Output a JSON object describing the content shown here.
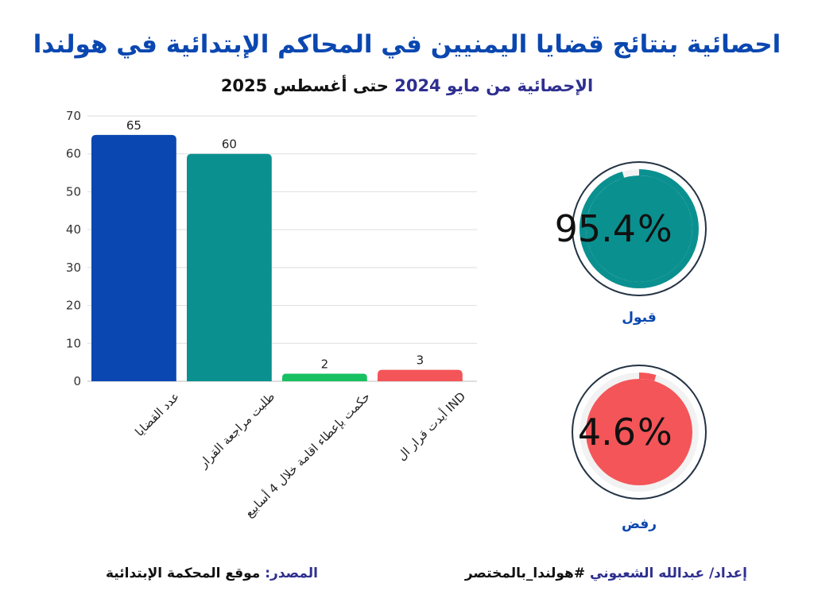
{
  "title": "احصائية بنتائج قضايا اليمنيين في المحاكم الإبتدائية في هولندا",
  "subtitle": {
    "highlight": "الإحصائية من مايو 2024",
    "rest": "حتى أغسطس 2025"
  },
  "chart_data": {
    "type": "bar",
    "categories": [
      "عدد القضايا",
      "طلبت مراجعة القرار",
      "حكمت بإعطاء اقامة خلال 4 أسابيع",
      "أيدت قرار ال IND"
    ],
    "values": [
      65,
      60,
      2,
      3
    ],
    "colors": [
      "#0a47b0",
      "#0b9090",
      "#17c060",
      "#f45558"
    ],
    "yticks": [
      0,
      10,
      20,
      30,
      40,
      50,
      60,
      70
    ],
    "ylim": [
      0,
      70
    ],
    "grid": true,
    "title": "",
    "xlabel": "",
    "ylabel": ""
  },
  "gauges": [
    {
      "number": "95.4",
      "percent_sign": "%",
      "label": "قبول",
      "value": 95.4,
      "color": "#0b9090"
    },
    {
      "number": "4.6",
      "percent_sign": "%",
      "label": "رفض",
      "value": 4.6,
      "color": "#f45558"
    }
  ],
  "footer": {
    "source_label": "المصدر:",
    "source_value": "موقع المحكمة الإبتدائية",
    "prepared_label": "إعداد/ عبدالله الشعبوني",
    "prepared_tag": "#هولندا_بالمختصر"
  }
}
